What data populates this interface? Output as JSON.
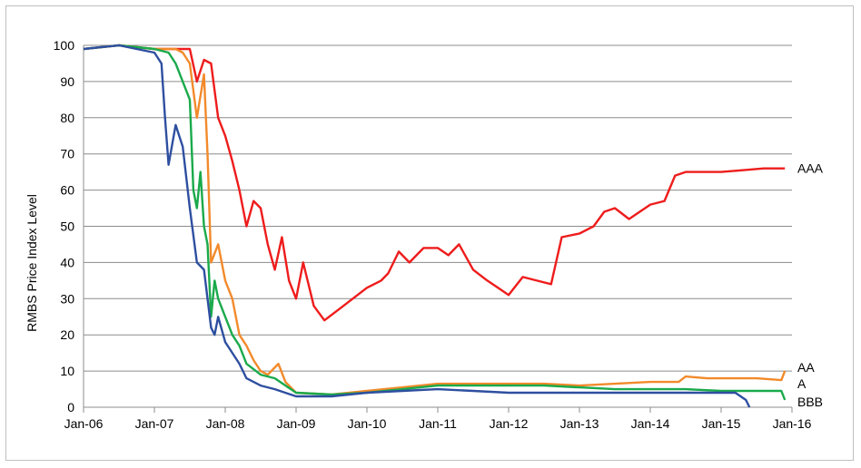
{
  "chart_data": {
    "type": "line",
    "title": "",
    "xlabel": "",
    "ylabel": "RMBS Price Index Level",
    "ylim": [
      0,
      100
    ],
    "yticks": [
      0,
      10,
      20,
      30,
      40,
      50,
      60,
      70,
      80,
      90,
      100
    ],
    "xlim": [
      2006.0,
      2016.0
    ],
    "xtick_labels": [
      "Jan-06",
      "Jan-07",
      "Jan-08",
      "Jan-09",
      "Jan-10",
      "Jan-11",
      "Jan-12",
      "Jan-13",
      "Jan-14",
      "Jan-15",
      "Jan-16"
    ],
    "grid": "horizontal",
    "legend": "inline labels at right end of lines",
    "series": [
      {
        "name": "AAA",
        "color": "#ee1c1c",
        "x": [
          2006.0,
          2006.5,
          2007.0,
          2007.3,
          2007.5,
          2007.6,
          2007.7,
          2007.8,
          2007.9,
          2008.0,
          2008.1,
          2008.2,
          2008.3,
          2008.4,
          2008.5,
          2008.6,
          2008.7,
          2008.8,
          2008.9,
          2009.0,
          2009.1,
          2009.25,
          2009.4,
          2009.6,
          2009.8,
          2010.0,
          2010.2,
          2010.3,
          2010.45,
          2010.6,
          2010.8,
          2011.0,
          2011.15,
          2011.3,
          2011.5,
          2011.7,
          2011.85,
          2012.0,
          2012.2,
          2012.4,
          2012.6,
          2012.75,
          2013.0,
          2013.2,
          2013.35,
          2013.5,
          2013.7,
          2014.0,
          2014.2,
          2014.35,
          2014.5,
          2014.7,
          2015.0,
          2015.3,
          2015.6,
          2015.9
        ],
        "y": [
          99,
          100,
          99,
          99,
          99,
          90,
          96,
          95,
          80,
          75,
          68,
          60,
          50,
          57,
          55,
          45,
          38,
          47,
          35,
          30,
          40,
          28,
          24,
          27,
          30,
          33,
          35,
          37,
          43,
          40,
          44,
          44,
          42,
          45,
          38,
          35,
          33,
          31,
          36,
          35,
          34,
          47,
          48,
          50,
          54,
          55,
          52,
          56,
          57,
          64,
          65,
          65,
          65,
          65.5,
          66,
          66
        ]
      },
      {
        "name": "AA",
        "color": "#f28a2b",
        "x": [
          2006.0,
          2006.5,
          2007.0,
          2007.3,
          2007.4,
          2007.5,
          2007.6,
          2007.7,
          2007.75,
          2007.8,
          2007.9,
          2008.0,
          2008.1,
          2008.2,
          2008.3,
          2008.4,
          2008.5,
          2008.6,
          2008.75,
          2008.85,
          2009.0,
          2009.5,
          2010.0,
          2010.5,
          2011.0,
          2011.5,
          2012.0,
          2012.5,
          2013.0,
          2013.5,
          2014.0,
          2014.4,
          2014.5,
          2014.8,
          2015.0,
          2015.5,
          2015.85,
          2015.9
        ],
        "y": [
          99,
          100,
          99,
          99,
          98,
          95,
          80,
          92,
          70,
          40,
          45,
          35,
          30,
          20,
          17,
          13,
          10,
          9,
          12,
          7,
          4,
          3.5,
          4.5,
          5.5,
          6.5,
          6.5,
          6.5,
          6.5,
          6,
          6.5,
          7,
          7,
          8.5,
          8,
          8,
          8,
          7.5,
          10
        ]
      },
      {
        "name": "A",
        "color": "#1aaa4b",
        "x": [
          2006.0,
          2006.5,
          2007.0,
          2007.2,
          2007.3,
          2007.4,
          2007.5,
          2007.55,
          2007.6,
          2007.65,
          2007.7,
          2007.75,
          2007.8,
          2007.85,
          2007.9,
          2008.0,
          2008.1,
          2008.2,
          2008.3,
          2008.5,
          2008.7,
          2009.0,
          2009.5,
          2010.0,
          2010.5,
          2011.0,
          2011.5,
          2012.0,
          2012.5,
          2013.0,
          2013.5,
          2014.0,
          2014.5,
          2015.0,
          2015.5,
          2015.85,
          2015.9
        ],
        "y": [
          99,
          100,
          99,
          98,
          95,
          90,
          85,
          60,
          55,
          65,
          50,
          45,
          25,
          35,
          30,
          25,
          20,
          17,
          12,
          9,
          8,
          4,
          3.5,
          4,
          5,
          6,
          6,
          6,
          6,
          5.5,
          5,
          5,
          5,
          4.5,
          4.5,
          4.5,
          2
        ]
      },
      {
        "name": "BBB",
        "color": "#2e4fa0",
        "x": [
          2006.0,
          2006.5,
          2007.0,
          2007.1,
          2007.15,
          2007.2,
          2007.3,
          2007.4,
          2007.5,
          2007.6,
          2007.7,
          2007.8,
          2007.85,
          2007.9,
          2008.0,
          2008.1,
          2008.2,
          2008.3,
          2008.5,
          2008.7,
          2009.0,
          2009.5,
          2010.0,
          2010.5,
          2011.0,
          2011.5,
          2012.0,
          2012.5,
          2013.0,
          2013.5,
          2014.0,
          2014.5,
          2015.0,
          2015.2,
          2015.35,
          2015.4
        ],
        "y": [
          99,
          100,
          98,
          95,
          80,
          67,
          78,
          72,
          55,
          40,
          38,
          22,
          20,
          25,
          18,
          15,
          12,
          8,
          6,
          5,
          3,
          3,
          4,
          4.5,
          5,
          4.5,
          4,
          4,
          4,
          4,
          4,
          4,
          4,
          4,
          2,
          0
        ]
      }
    ]
  }
}
